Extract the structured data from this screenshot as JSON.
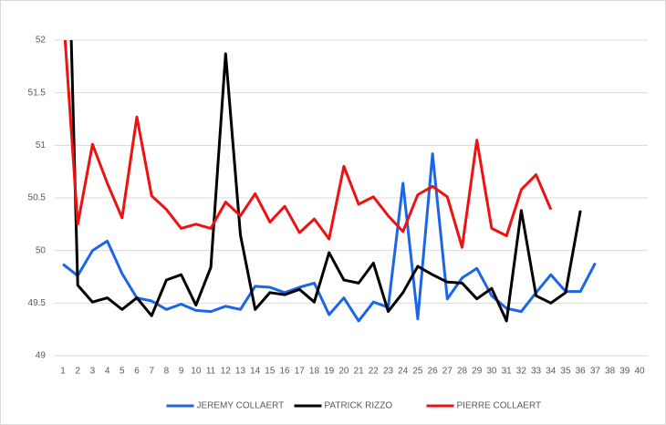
{
  "chart_data": {
    "type": "line",
    "categories": [
      1,
      2,
      3,
      4,
      5,
      6,
      7,
      8,
      9,
      10,
      11,
      12,
      13,
      14,
      15,
      16,
      17,
      18,
      19,
      20,
      21,
      22,
      23,
      24,
      25,
      26,
      27,
      28,
      29,
      30,
      31,
      32,
      33,
      34,
      35,
      36,
      37,
      38,
      39,
      40
    ],
    "series": [
      {
        "name": "JEREMY COLLAERT",
        "color": "#1a66e6",
        "values": [
          49.87,
          49.76,
          50.0,
          50.09,
          49.78,
          49.55,
          49.52,
          49.44,
          49.49,
          49.43,
          49.42,
          49.47,
          49.44,
          49.66,
          49.65,
          49.6,
          49.65,
          49.69,
          49.39,
          49.55,
          49.33,
          49.51,
          49.46,
          50.64,
          49.35,
          50.92,
          49.54,
          49.74,
          49.83,
          49.57,
          49.45,
          49.42,
          49.6,
          49.77,
          49.61,
          49.61,
          49.88,
          null,
          null,
          null
        ]
      },
      {
        "name": "PATRICK RIZZO",
        "color": "#000000",
        "values": [
          55,
          49.67,
          49.51,
          49.55,
          49.44,
          49.55,
          49.38,
          49.72,
          49.77,
          49.48,
          49.84,
          51.87,
          50.15,
          49.44,
          49.6,
          49.58,
          49.63,
          49.51,
          49.98,
          49.72,
          49.69,
          49.88,
          49.42,
          49.6,
          49.85,
          49.77,
          49.7,
          49.69,
          49.54,
          49.64,
          49.33,
          50.38,
          49.57,
          49.5,
          49.6,
          50.38,
          null,
          null,
          null,
          null
        ]
      },
      {
        "name": "PIERRE COLLAERT",
        "color": "#ee1111",
        "values": [
          52.3,
          50.25,
          51.01,
          50.64,
          50.31,
          51.27,
          50.52,
          50.39,
          50.21,
          50.25,
          50.21,
          50.46,
          50.33,
          50.54,
          50.27,
          50.42,
          50.17,
          50.3,
          50.11,
          50.8,
          50.44,
          50.51,
          50.33,
          50.18,
          50.53,
          50.61,
          50.51,
          50.03,
          51.05,
          50.21,
          50.14,
          50.58,
          50.72,
          50.39,
          null,
          null,
          null,
          null,
          null,
          null
        ]
      }
    ],
    "ylim": [
      49,
      52
    ],
    "yticks": [
      49,
      49.5,
      50,
      50.5,
      51,
      51.5,
      52
    ],
    "grid": true,
    "legend": "bottom"
  }
}
